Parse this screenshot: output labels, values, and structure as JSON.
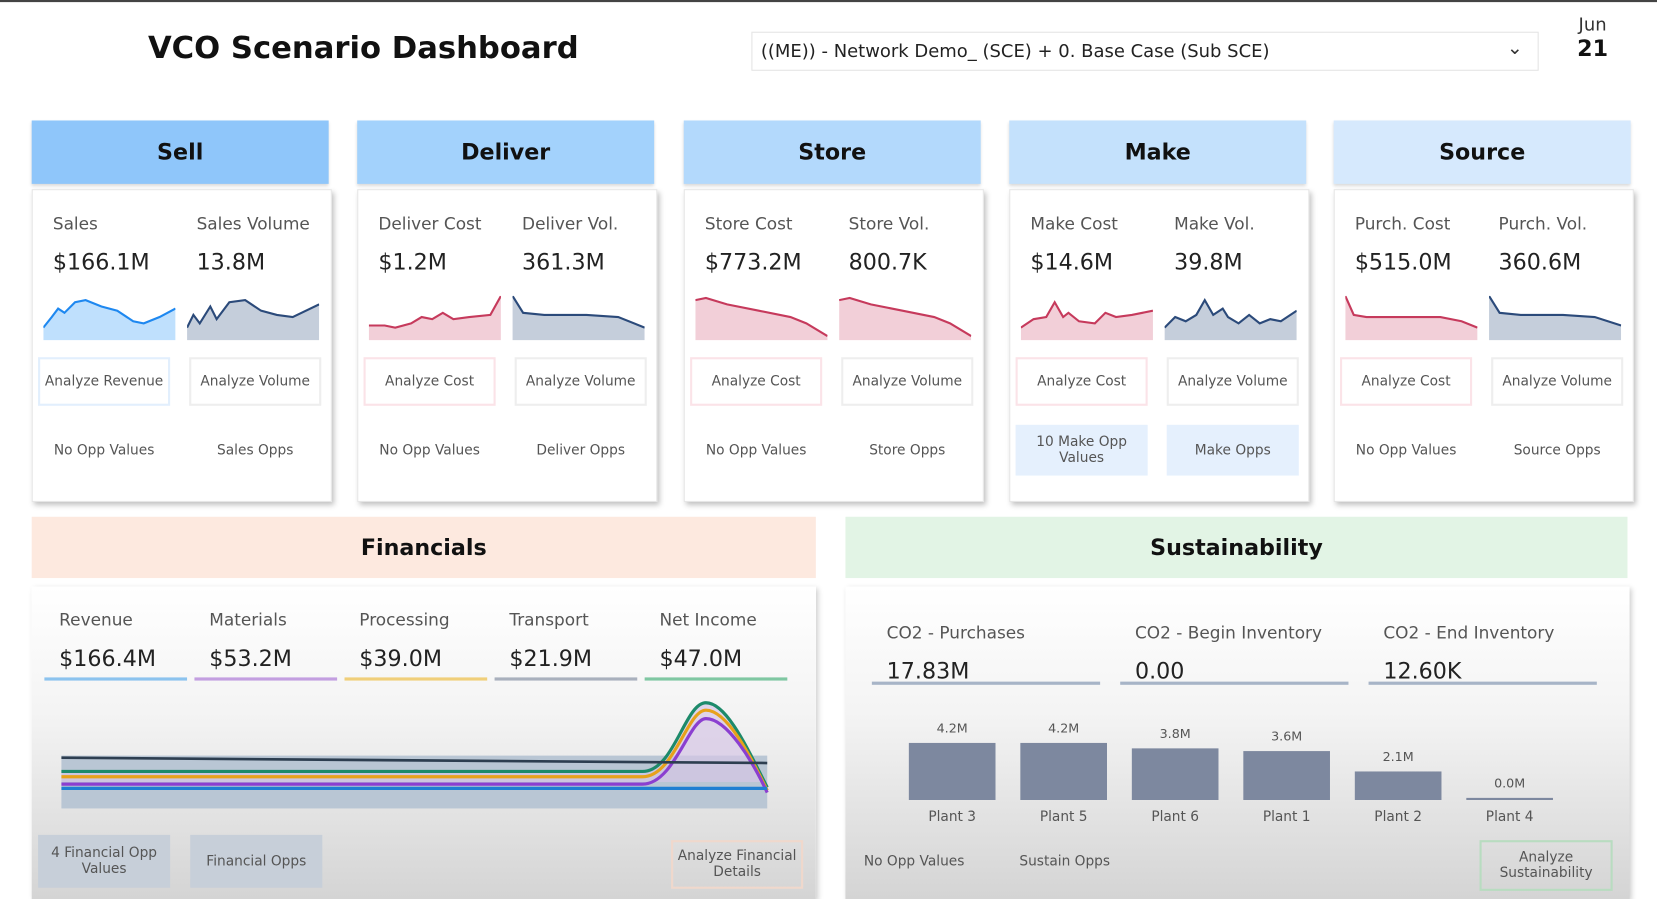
{
  "header": {
    "title": "VCO Scenario Dashboard",
    "scenario": "((ME)) - Network Demo_ (SCE) + 0. Base Case (Sub SCE)",
    "date_month": "Jun",
    "date_day": "21"
  },
  "sections": [
    {
      "title": "Sell",
      "color": "#8fc6fa",
      "m1_label": "Sales",
      "m1_value": "$166.1M",
      "m2_label": "Sales Volume",
      "m2_value": "13.8M",
      "b1": "Analyze Revenue",
      "b2": "Analyze Volume",
      "o1": "No Opp Values",
      "o2": "Sales Opps"
    },
    {
      "title": "Deliver",
      "color": "#a3d2fc",
      "m1_label": "Deliver Cost",
      "m1_value": "$1.2M",
      "m2_label": "Deliver Vol.",
      "m2_value": "361.3M",
      "b1": "Analyze Cost",
      "b2": "Analyze Volume",
      "o1": "No Opp Values",
      "o2": "Deliver Opps"
    },
    {
      "title": "Store",
      "color": "#b3d9fc",
      "m1_label": "Store Cost",
      "m1_value": "$773.2M",
      "m2_label": "Store Vol.",
      "m2_value": "800.7K",
      "b1": "Analyze Cost",
      "b2": "Analyze Volume",
      "o1": "No Opp Values",
      "o2": "Store Opps"
    },
    {
      "title": "Make",
      "color": "#c4e1fc",
      "m1_label": "Make Cost",
      "m1_value": "$14.6M",
      "m2_label": "Make Vol.",
      "m2_value": "39.8M",
      "b1": "Analyze Cost",
      "b2": "Analyze Volume",
      "o1": "10 Make Opp Values",
      "o2": "Make Opps"
    },
    {
      "title": "Source",
      "color": "#d6e9fd",
      "m1_label": "Purch. Cost",
      "m1_value": "$515.0M",
      "m2_label": "Purch. Vol.",
      "m2_value": "360.6M",
      "b1": "Analyze Cost",
      "b2": "Analyze Volume",
      "o1": "No Opp Values",
      "o2": "Source Opps"
    }
  ],
  "financials": {
    "title": "Financials",
    "metrics": [
      {
        "label": "Revenue",
        "value": "$166.4M",
        "color": "#8cc3ee"
      },
      {
        "label": "Materials",
        "value": "$53.2M",
        "color": "#c39fe0"
      },
      {
        "label": "Processing",
        "value": "$39.0M",
        "color": "#f0cf7a"
      },
      {
        "label": "Transport",
        "value": "$21.9M",
        "color": "#a9b0bd"
      },
      {
        "label": "Net Income",
        "value": "$47.0M",
        "color": "#7fc7a2"
      }
    ],
    "opp_values": "4 Financial Opp Values",
    "opps": "Financial Opps",
    "analyze": "Analyze Financial Details"
  },
  "sustainability": {
    "title": "Sustainability",
    "metrics": [
      {
        "label": "CO2 - Purchases",
        "value": "17.83M"
      },
      {
        "label": "CO2 - Begin Inventory",
        "value": "0.00"
      },
      {
        "label": "CO2 - End Inventory",
        "value": "12.60K"
      }
    ],
    "opp_values": "No Opp Values",
    "opps": "Sustain Opps",
    "analyze": "Analyze Sustainability"
  },
  "chart_data": {
    "type": "bar",
    "categories": [
      "Plant 3",
      "Plant 5",
      "Plant 6",
      "Plant 1",
      "Plant 2",
      "Plant 4"
    ],
    "values": [
      4.2,
      4.2,
      3.8,
      3.6,
      2.1,
      0.0
    ],
    "data_labels": [
      "4.2M",
      "4.2M",
      "3.8M",
      "3.6M",
      "2.1M",
      "0.0M"
    ],
    "color": "#7d889f"
  }
}
